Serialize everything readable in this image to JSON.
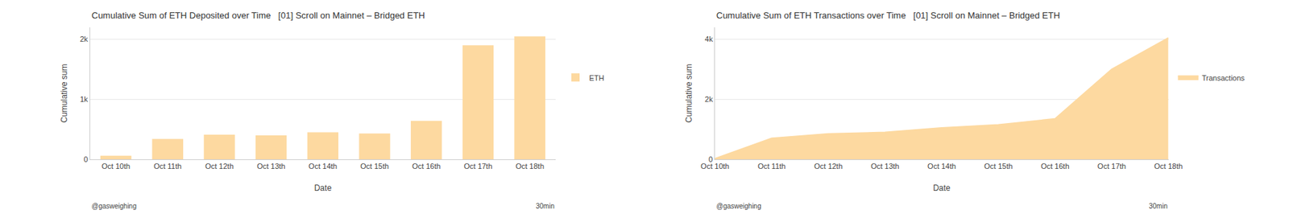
{
  "chart_data": [
    {
      "type": "bar",
      "title": "Cumulative Sum of ETH Deposited over Time   [01] Scroll on Mainnet – Bridged ETH",
      "xlabel": "Date",
      "ylabel": "Cumulative sum",
      "categories": [
        "Oct 10th",
        "Oct 11th",
        "Oct 12th",
        "Oct 13th",
        "Oct 14th",
        "Oct 15th",
        "Oct 16th",
        "Oct 17th",
        "Oct 18th"
      ],
      "series": [
        {
          "name": "ETH",
          "color": "#fdd9a0",
          "values": [
            60,
            340,
            410,
            400,
            450,
            430,
            640,
            1900,
            2050
          ]
        }
      ],
      "ylim": [
        0,
        2200
      ],
      "yticks": [
        0,
        {
          "value": 1000,
          "label": "1k"
        },
        {
          "value": 2000,
          "label": "2k"
        }
      ],
      "grid": true,
      "legend": "right",
      "annotations": [
        "@gasweighing",
        "30min"
      ]
    },
    {
      "type": "area",
      "title": "Cumulative Sum of ETH Transactions over Time   [01] Scroll on Mainnet – Bridged ETH",
      "xlabel": "Date",
      "ylabel": "Cumulative sum",
      "categories": [
        "Oct 10th",
        "Oct 11th",
        "Oct 12th",
        "Oct 13th",
        "Oct 14th",
        "Oct 15th",
        "Oct 16th",
        "Oct 17th",
        "Oct 18th"
      ],
      "series": [
        {
          "name": "Transactions",
          "color": "#fdd9a0",
          "values": [
            20,
            700,
            850,
            900,
            1050,
            1150,
            1350,
            3000,
            4050
          ]
        }
      ],
      "ylim": [
        0,
        4400
      ],
      "yticks": [
        0,
        {
          "value": 2000,
          "label": "2k"
        },
        {
          "value": 4000,
          "label": "4k"
        }
      ],
      "grid": true,
      "legend": "right",
      "annotations": [
        "@gasweighing",
        "30min"
      ]
    }
  ]
}
